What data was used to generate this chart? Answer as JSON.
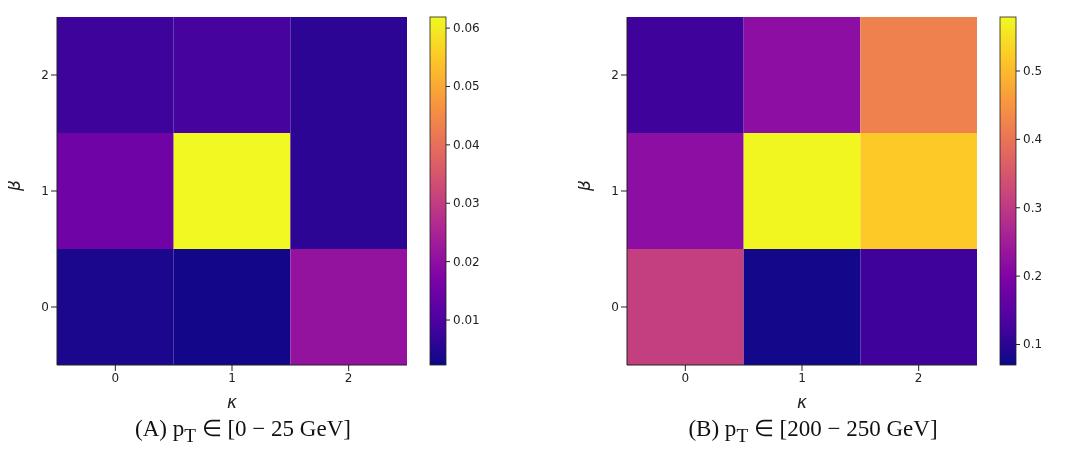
{
  "chart_data": [
    {
      "type": "heatmap",
      "title": "(A) p$_{T}$ ∈ [0 − 25 GeV]",
      "xlabel": "κ",
      "ylabel": "β",
      "categories": [
        "0",
        "1",
        "2"
      ],
      "y_categories": [
        "2",
        "1",
        "0"
      ],
      "cells": [
        [
          0.008,
          0.009,
          0.006
        ],
        [
          0.015,
          0.062,
          0.006
        ],
        [
          0.004,
          0.003,
          0.021
        ]
      ],
      "clim": [
        0.0023,
        0.0619
      ],
      "cticks": [
        0.01,
        0.02,
        0.03,
        0.04,
        0.05,
        0.06
      ]
    },
    {
      "type": "heatmap",
      "title": "(B) p$_{T}$ ∈ [200 − 250 GeV]",
      "xlabel": "κ",
      "ylabel": "β",
      "categories": [
        "0",
        "1",
        "2"
      ],
      "y_categories": [
        "2",
        "1",
        "0"
      ],
      "cells": [
        [
          0.12,
          0.22,
          0.42
        ],
        [
          0.22,
          0.575,
          0.52
        ],
        [
          0.31,
          0.075,
          0.12
        ]
      ],
      "clim": [
        0.07,
        0.579
      ],
      "cticks": [
        0.1,
        0.2,
        0.3,
        0.4,
        0.5
      ]
    }
  ]
}
